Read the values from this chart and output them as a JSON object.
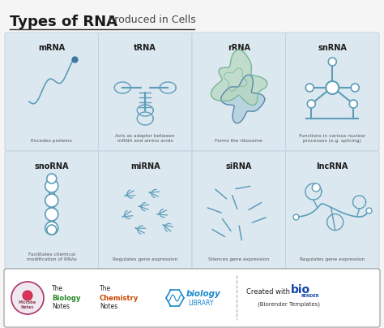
{
  "title_bold": "Types of RNA",
  "title_light": " Produced in Cells",
  "bg_color": "#f5f5f5",
  "card_bg": "#dce8f0",
  "card_border": "#c0d0e0",
  "rna_types": [
    "mRNA",
    "tRNA",
    "rRNA",
    "snRNA",
    "snoRNA",
    "miRNA",
    "siRNA",
    "lncRNA"
  ],
  "descriptions": [
    "Encodes proteins",
    "Acts as adaptor between\nmRNA and amino acids",
    "Forms the ribosome",
    "Functions in various nuclear\nprocesses (e.g. splicing)",
    "Facilitates chemical\nmodification of RNAs",
    "Regulates gene expression",
    "Silences gene expression",
    "Regulates gene expression"
  ],
  "icon_color": "#5d9db8",
  "rrna_green": "#7ab89a",
  "rrna_green_fill": "#b8d8c0",
  "rrna_blue_fill": "#a8c8d8",
  "title_color": "#1a1a1a",
  "desc_color": "#555555",
  "label_color": "#1a1a1a",
  "footer_border": "#aaaaaa",
  "biology_color": "#1a88cc",
  "bio_bold_color": "#1144aa",
  "biology_green": "#228822",
  "chemistry_orange": "#cc4400"
}
